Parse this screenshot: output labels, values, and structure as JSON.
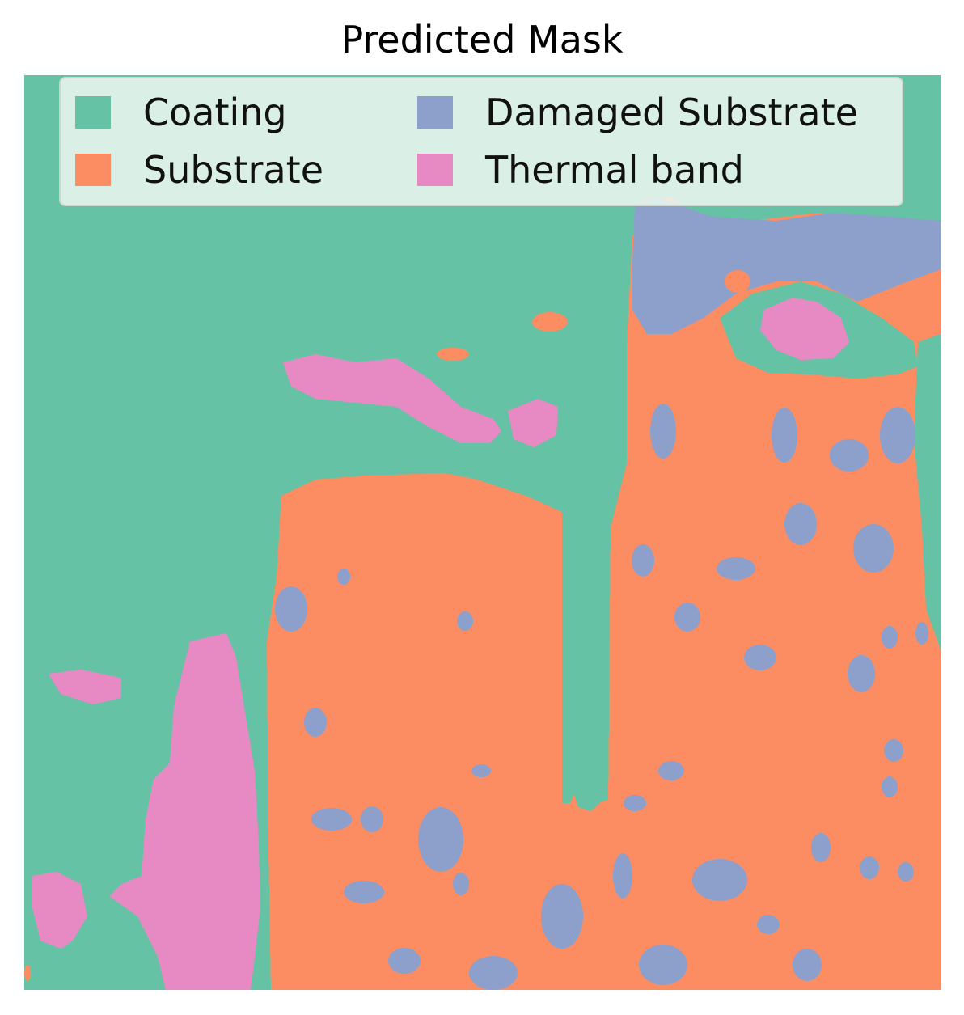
{
  "title": "Predicted Mask",
  "classes": [
    {
      "name": "Coating",
      "color": "#66c2a5"
    },
    {
      "name": "Substrate",
      "color": "#fc8d62"
    },
    {
      "name": "Damaged Substrate",
      "color": "#8da0cb"
    },
    {
      "name": "Thermal band",
      "color": "#e78ac3"
    }
  ]
}
